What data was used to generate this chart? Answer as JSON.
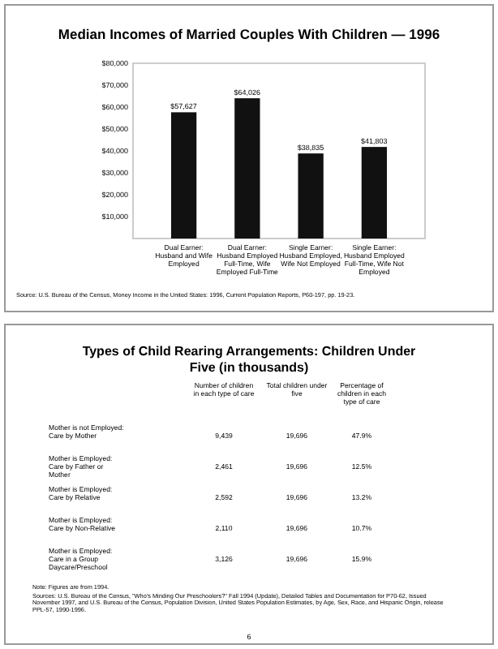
{
  "chart_data": [
    {
      "type": "bar",
      "title": "Median Incomes of Married Couples With Children — 1996",
      "categories": [
        "Dual Earner: Husband and Wife Employed",
        "Dual Earner: Husband Employed Full-Time, Wife Employed Full-Time",
        "Single Earner: Husband Employed, Wife Not Employed",
        "Single Earner: Husband Employed Full-Time, Wife Not Employed"
      ],
      "values": [
        57627,
        64026,
        38835,
        41803
      ],
      "value_labels": [
        "$57,627",
        "$64,026",
        "$38,835",
        "$41,803"
      ],
      "color": "#111111",
      "ylim": [
        0,
        80000
      ],
      "yticks": [
        {
          "value": 10000,
          "label": "$10,000"
        },
        {
          "value": 20000,
          "label": "$20,000"
        },
        {
          "value": 30000,
          "label": "$30,000"
        },
        {
          "value": 40000,
          "label": "$40,000"
        },
        {
          "value": 50000,
          "label": "$50,000"
        },
        {
          "value": 60000,
          "label": "$60,000"
        },
        {
          "value": 70000,
          "label": "$70,000"
        },
        {
          "value": 80000,
          "label": "$80,000"
        }
      ],
      "grid": false,
      "annotations": [
        "Source: U.S. Bureau of the Census, Money Income in the United States: 1996, Current Population Reports, P60-197, pp. 19-23."
      ]
    },
    {
      "type": "other",
      "title": "Types of Child Rearing Arrangements: Children Under Five (in thousands)",
      "categories": [
        "Number of children in each type of care",
        "Total children under five",
        "Percentage of children in each type of care"
      ],
      "y_categories": [
        "Mother is not Employed: Care by Mother",
        "Mother is Employed: Care by Father or Mother",
        "Mother is Employed: Care by Relative",
        "Mother is Employed: Care by Non-Relative",
        "Mother is Employed: Care in a Group Daycare/Preschool"
      ],
      "cell_labels": [
        [
          "9,439",
          "19,696",
          "47.9%"
        ],
        [
          "2,461",
          "19,696",
          "12.5%"
        ],
        [
          "2,592",
          "19,696",
          "13.2%"
        ],
        [
          "2,110",
          "19,696",
          "10.7%"
        ],
        [
          "3,126",
          "19,696",
          "15.9%"
        ]
      ],
      "annotations": [
        "Note: Figures are from 1994.",
        "Sources: U.S. Bureau of the Census, \"Who's Minding Our Preschoolers?\" Fall 1994 (Update), Detailed Tables and Documentation for P70-62, Issued November 1997, and U.S. Bureau of the Census, Population Division, United States Population Estimates, by Age, Sex, Race, and Hispanic Origin, release PPL-57, 1990-1996.",
        "6"
      ]
    }
  ]
}
